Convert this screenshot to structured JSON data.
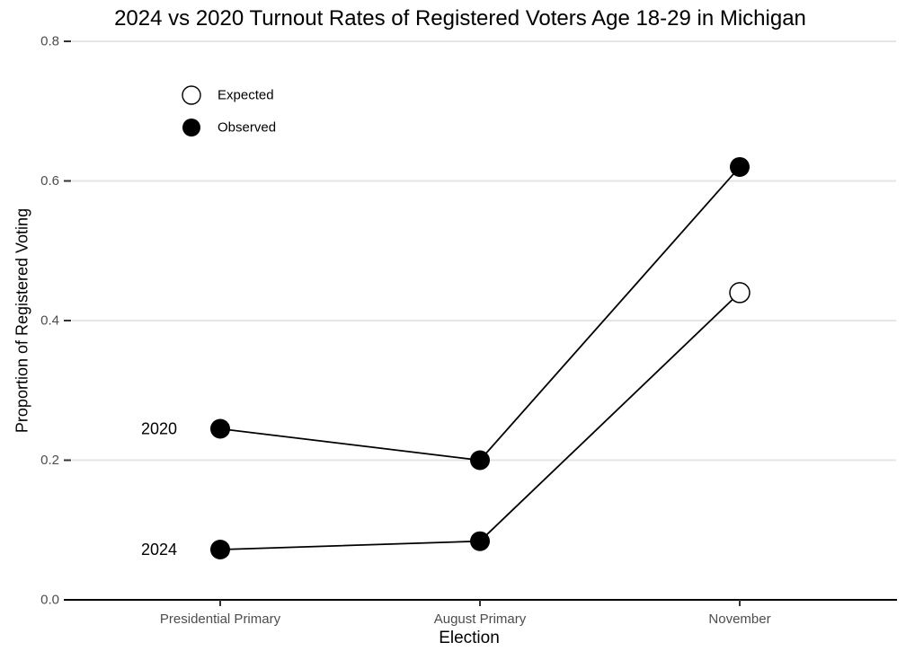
{
  "chart_data": {
    "type": "line",
    "title": "2024 vs 2020 Turnout Rates of Registered Voters Age 18-29 in Michigan",
    "xlabel": "Election",
    "ylabel": "Proportion of Registered Voting",
    "categories": [
      "Presidential Primary",
      "August Primary",
      "November"
    ],
    "y_ticks": [
      0.0,
      0.2,
      0.4,
      0.6,
      0.8
    ],
    "y_tick_labels": [
      "0.0",
      "0.2",
      "0.4",
      "0.6",
      "0.8"
    ],
    "ylim": [
      0,
      0.8
    ],
    "grid": "horizontal-only",
    "legend_position": "top-left-inside",
    "legend": {
      "items": [
        {
          "label": "Expected",
          "marker": "open-circle"
        },
        {
          "label": "Observed",
          "marker": "filled-circle"
        }
      ]
    },
    "series": [
      {
        "name": "2020",
        "values": [
          0.245,
          0.2,
          0.62
        ],
        "markers": [
          "filled",
          "filled",
          "filled"
        ]
      },
      {
        "name": "2024",
        "values": [
          0.072,
          0.084,
          0.44
        ],
        "markers": [
          "filled",
          "filled",
          "open"
        ]
      }
    ]
  },
  "colors": {
    "background": "#ffffff",
    "series_line": "#000000",
    "marker_fill": "#000000",
    "marker_open_fill": "#ffffff",
    "marker_stroke": "#000000",
    "gridline": "#e5e5e5",
    "axis_line": "#000000",
    "tick_mark": "#333333",
    "tick_label": "#4d4d4d",
    "title_text": "#000000"
  }
}
